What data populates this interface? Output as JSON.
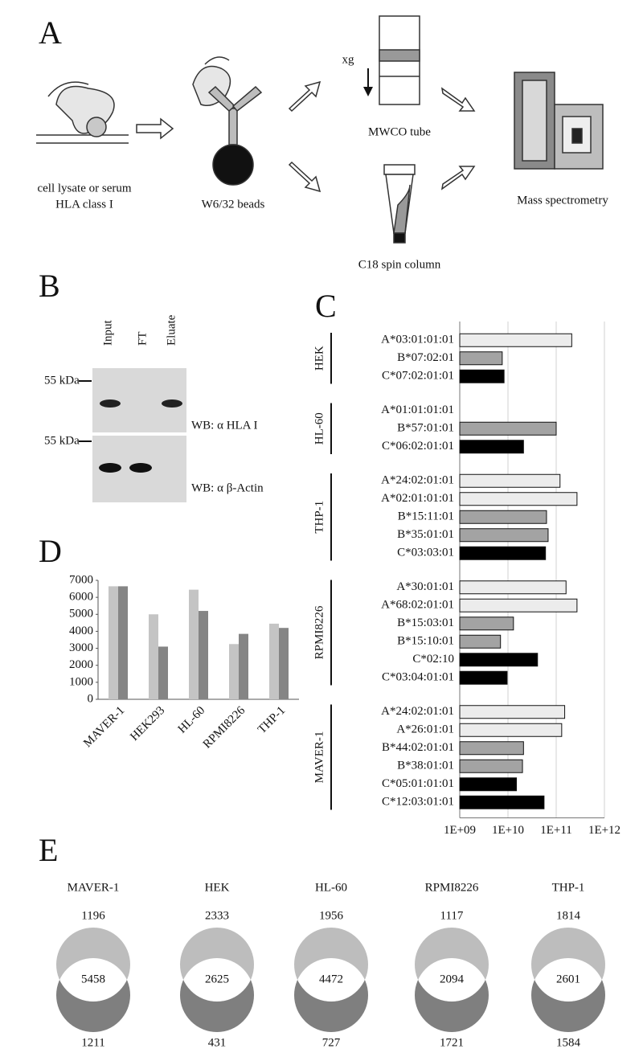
{
  "panel_a": {
    "label": "A",
    "source": [
      "cell lysate or serum",
      "HLA class I"
    ],
    "beads": "W6/32 beads",
    "force": "xg",
    "mwco": "MWCO tube",
    "c18": "C18 spin column",
    "ms": "Mass spectrometry"
  },
  "panel_b": {
    "label": "B",
    "lanes": [
      "Input",
      "FT",
      "Eluate"
    ],
    "blots": [
      {
        "marker": "55 kDa",
        "antibody": "WB: α HLA I"
      },
      {
        "marker": "55 kDa",
        "antibody": "WB: α β-Actin"
      }
    ]
  },
  "chart_data": [
    {
      "label": "C",
      "type": "hbar",
      "log": true,
      "grid": true,
      "xlim": [
        1000000000,
        1000000000000
      ],
      "xticks": [
        {
          "value": 1000000000,
          "label": "1E+09"
        },
        {
          "value": 10000000000,
          "label": "1E+10"
        },
        {
          "value": 100000000000,
          "label": "1E+11"
        },
        {
          "value": 1000000000000,
          "label": "1E+12"
        }
      ],
      "groups": [
        {
          "name": "HEK",
          "categories": [
            "A*03:01:01:01",
            "B*07:02:01",
            "C*07:02:01:01"
          ],
          "values": [
            210000000000,
            7600000000,
            8300000000
          ],
          "colors": [
            "#ececec",
            "#a3a3a3",
            "#000000"
          ]
        },
        {
          "name": "HL-60",
          "categories": [
            "A*01:01:01:01",
            "B*57:01:01",
            "C*06:02:01:01"
          ],
          "values": [
            null,
            100000000000,
            21000000000
          ],
          "colors": [
            "#ececec",
            "#a3a3a3",
            "#000000"
          ]
        },
        {
          "name": "THP-1",
          "categories": [
            "A*24:02:01:01",
            "A*02:01:01:01",
            "B*15:11:01",
            "B*35:01:01",
            "C*03:03:01"
          ],
          "values": [
            120000000000,
            270000000000,
            63000000000,
            68000000000,
            60000000000
          ],
          "colors": [
            "#ececec",
            "#ececec",
            "#a3a3a3",
            "#a3a3a3",
            "#000000"
          ]
        },
        {
          "name": "RPMI8226",
          "categories": [
            "A*30:01:01",
            "A*68:02:01:01",
            "B*15:03:01",
            "B*15:10:01",
            "C*02:10",
            "C*03:04:01:01"
          ],
          "values": [
            160000000000,
            270000000000,
            13000000000,
            7000000000,
            41000000000,
            9600000000
          ],
          "colors": [
            "#ececec",
            "#ececec",
            "#a3a3a3",
            "#a3a3a3",
            "#000000",
            "#000000"
          ]
        },
        {
          "name": "MAVER-1",
          "categories": [
            "A*24:02:01:01",
            "A*26:01:01",
            "B*44:02:01:01",
            "B*38:01:01",
            "C*05:01:01:01",
            "C*12:03:01:01"
          ],
          "values": [
            150000000000,
            130000000000,
            21000000000,
            20000000000,
            15000000000,
            56000000000
          ],
          "colors": [
            "#ececec",
            "#ececec",
            "#a3a3a3",
            "#a3a3a3",
            "#000000",
            "#000000"
          ]
        }
      ]
    },
    {
      "label": "D",
      "type": "bar",
      "categories": [
        "MAVER-1",
        "HEK293",
        "HL-60",
        "RPMI8226",
        "THP-1"
      ],
      "series": [
        {
          "color": "#c4c4c4",
          "values": [
            6650,
            5000,
            6450,
            3250,
            4450
          ]
        },
        {
          "color": "#858585",
          "values": [
            6650,
            3100,
            5200,
            3850,
            4200
          ]
        }
      ],
      "ylim": [
        0,
        7000
      ],
      "yticks": [
        0,
        1000,
        2000,
        3000,
        4000,
        5000,
        6000,
        7000
      ]
    }
  ],
  "panel_e": {
    "label": "E",
    "sets": [
      {
        "name": "MAVER-1",
        "top": 1196,
        "shared": 5458,
        "bottom": 1211
      },
      {
        "name": "HEK",
        "top": 2333,
        "shared": 2625,
        "bottom": 431
      },
      {
        "name": "HL-60",
        "top": 1956,
        "shared": 4472,
        "bottom": 727
      },
      {
        "name": "RPMI8226",
        "top": 1117,
        "shared": 2094,
        "bottom": 1721
      },
      {
        "name": "THP-1",
        "top": 1814,
        "shared": 2601,
        "bottom": 1584
      }
    ]
  }
}
